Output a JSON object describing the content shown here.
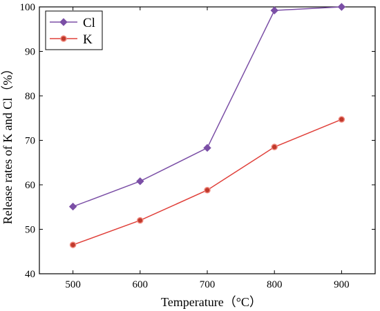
{
  "chart_data": {
    "type": "line",
    "title": "",
    "xlabel": "Temperature（°C）",
    "ylabel": "Release rates of K and Cl（%）",
    "x": [
      500,
      600,
      700,
      800,
      900
    ],
    "xlim": [
      450,
      950
    ],
    "ylim": [
      40,
      100
    ],
    "xticks": [
      500,
      600,
      700,
      800,
      900
    ],
    "yticks": [
      40,
      50,
      60,
      70,
      80,
      90,
      100
    ],
    "grid": false,
    "legend": "top-left",
    "series": [
      {
        "name": "Cl",
        "values": [
          55.1,
          60.8,
          68.3,
          99.2,
          100.0
        ],
        "color": "#7b4fa6",
        "marker": "diamond"
      },
      {
        "name": "K",
        "values": [
          46.5,
          52.0,
          58.8,
          68.5,
          74.7
        ],
        "color": "#e0403a",
        "marker": "circle"
      }
    ]
  }
}
